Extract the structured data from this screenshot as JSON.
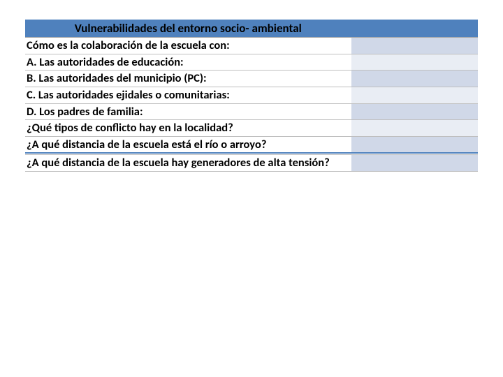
{
  "table": {
    "title": "Vulnerabilidades del entorno socio- ambiental",
    "title_fontsize": 17,
    "header_bg": "#4f81bd",
    "row_alt_colors": [
      "#d0d8e8",
      "#e9edf4"
    ],
    "border_color": "#bfbfbf",
    "divider_color": "#4f81bd",
    "label_fontsize": 16.5,
    "label_fontweight": "bold",
    "columns": [
      "label",
      "value"
    ],
    "col_widths": [
      "72%",
      "28%"
    ],
    "rows": [
      {
        "label": "Cómo es la colaboración de la escuela con:",
        "value": "",
        "alt": 0
      },
      {
        "label": "A. Las autoridades de educación:",
        "value": "",
        "alt": 1
      },
      {
        "label": "B. Las autoridades del municipio (PC):",
        "value": "",
        "alt": 0
      },
      {
        "label": "C. Las autoridades ejidales o comunitarias:",
        "value": "",
        "alt": 1
      },
      {
        "label": "D. Los padres de familia:",
        "value": "",
        "alt": 0
      },
      {
        "label": "¿Qué tipos de conflicto hay en la localidad?",
        "value": "",
        "alt": 1
      },
      {
        "label": "¿A qué distancia de la escuela está el río o arroyo?",
        "value": "",
        "alt": 0
      }
    ],
    "rows_after_divider": [
      {
        "label": "¿A qué distancia de la escuela hay generadores de alta tensión?",
        "value": "",
        "alt": 0
      }
    ]
  }
}
